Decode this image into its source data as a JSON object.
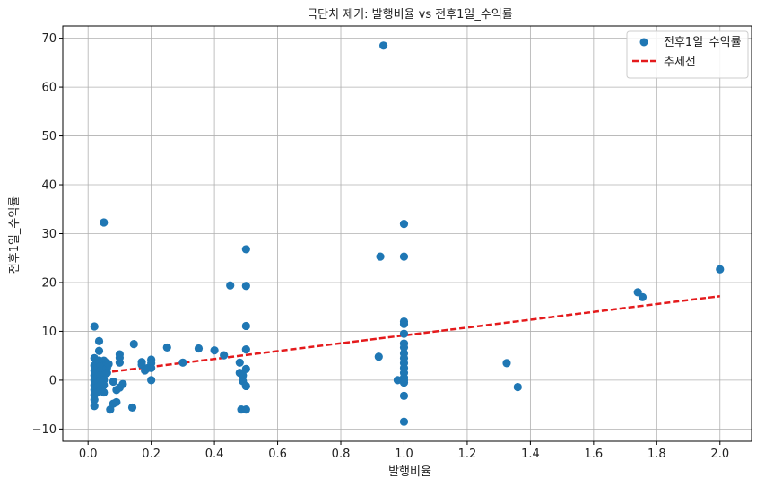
{
  "chart_data": {
    "type": "scatter",
    "title": "극단치 제거: 발행비율 vs 전후1일_수익률",
    "xlabel": "발행비율",
    "ylabel": "전후1일_수익률",
    "xlim": [
      -0.08,
      2.1
    ],
    "ylim": [
      -12.5,
      72.5
    ],
    "xticks": [
      0.0,
      0.2,
      0.4,
      0.6,
      0.8,
      1.0,
      1.2,
      1.4,
      1.6,
      1.8,
      2.0
    ],
    "xtick_labels": [
      "0.0",
      "0.2",
      "0.4",
      "0.6",
      "0.8",
      "1.0",
      "1.2",
      "1.4",
      "1.6",
      "1.8",
      "2.0"
    ],
    "yticks": [
      -10,
      0,
      10,
      20,
      30,
      40,
      50,
      60,
      70
    ],
    "ytick_labels": [
      "−10",
      "0",
      "10",
      "20",
      "30",
      "40",
      "50",
      "60",
      "70"
    ],
    "grid": true,
    "legend_position": "top-right",
    "series": [
      {
        "name": "전후1일_수익률",
        "kind": "scatter",
        "color": "#1f77b4",
        "points": [
          [
            0.02,
            11.0
          ],
          [
            0.02,
            4.5
          ],
          [
            0.02,
            3.0
          ],
          [
            0.02,
            2.0
          ],
          [
            0.02,
            1.0
          ],
          [
            0.02,
            0.0
          ],
          [
            0.02,
            -1.0
          ],
          [
            0.02,
            -2.0
          ],
          [
            0.02,
            -3.0
          ],
          [
            0.02,
            -4.0
          ],
          [
            0.02,
            -5.3
          ],
          [
            0.03,
            3.5
          ],
          [
            0.03,
            2.5
          ],
          [
            0.03,
            1.5
          ],
          [
            0.03,
            0.5
          ],
          [
            0.03,
            -0.5
          ],
          [
            0.03,
            -1.5
          ],
          [
            0.03,
            -2.5
          ],
          [
            0.035,
            8.0
          ],
          [
            0.035,
            6.0
          ],
          [
            0.035,
            4.0
          ],
          [
            0.04,
            3.0
          ],
          [
            0.04,
            2.0
          ],
          [
            0.04,
            1.0
          ],
          [
            0.04,
            0.0
          ],
          [
            0.04,
            -1.0
          ],
          [
            0.04,
            -2.0
          ],
          [
            0.05,
            32.3
          ],
          [
            0.05,
            4.0
          ],
          [
            0.05,
            3.0
          ],
          [
            0.05,
            2.0
          ],
          [
            0.05,
            1.0
          ],
          [
            0.05,
            0.0
          ],
          [
            0.05,
            -1.0
          ],
          [
            0.05,
            -2.5
          ],
          [
            0.06,
            3.5
          ],
          [
            0.06,
            2.5
          ],
          [
            0.06,
            1.5
          ],
          [
            0.065,
            3.3
          ],
          [
            0.07,
            -6.0
          ],
          [
            0.08,
            -0.3
          ],
          [
            0.08,
            -4.8
          ],
          [
            0.09,
            -4.5
          ],
          [
            0.09,
            -2.0
          ],
          [
            0.1,
            5.3
          ],
          [
            0.1,
            4.6
          ],
          [
            0.1,
            3.6
          ],
          [
            0.1,
            -1.5
          ],
          [
            0.11,
            -0.8
          ],
          [
            0.14,
            -5.6
          ],
          [
            0.145,
            7.4
          ],
          [
            0.17,
            3.7
          ],
          [
            0.17,
            3.2
          ],
          [
            0.18,
            2.0
          ],
          [
            0.19,
            2.5
          ],
          [
            0.2,
            4.2
          ],
          [
            0.2,
            3.5
          ],
          [
            0.2,
            2.5
          ],
          [
            0.2,
            0.0
          ],
          [
            0.25,
            6.7
          ],
          [
            0.3,
            3.6
          ],
          [
            0.35,
            6.5
          ],
          [
            0.4,
            6.1
          ],
          [
            0.43,
            5.1
          ],
          [
            0.45,
            19.4
          ],
          [
            0.48,
            3.6
          ],
          [
            0.48,
            1.5
          ],
          [
            0.485,
            -6.0
          ],
          [
            0.49,
            -0.2
          ],
          [
            0.49,
            1.0
          ],
          [
            0.5,
            26.8
          ],
          [
            0.5,
            19.3
          ],
          [
            0.5,
            11.1
          ],
          [
            0.5,
            6.3
          ],
          [
            0.5,
            2.3
          ],
          [
            0.5,
            -1.2
          ],
          [
            0.5,
            -6.0
          ],
          [
            0.92,
            4.8
          ],
          [
            0.925,
            25.3
          ],
          [
            0.935,
            68.5
          ],
          [
            0.98,
            0.0
          ],
          [
            1.0,
            32.0
          ],
          [
            1.0,
            25.3
          ],
          [
            1.0,
            12.0
          ],
          [
            1.0,
            11.5
          ],
          [
            1.0,
            9.5
          ],
          [
            1.0,
            7.5
          ],
          [
            1.0,
            6.7
          ],
          [
            1.0,
            5.5
          ],
          [
            1.0,
            4.5
          ],
          [
            1.0,
            3.5
          ],
          [
            1.0,
            2.5
          ],
          [
            1.0,
            1.5
          ],
          [
            1.0,
            0.5
          ],
          [
            1.0,
            0.0
          ],
          [
            1.0,
            -0.5
          ],
          [
            1.0,
            -3.2
          ],
          [
            1.0,
            -8.5
          ],
          [
            1.325,
            3.5
          ],
          [
            1.36,
            -1.4
          ],
          [
            1.74,
            18.0
          ],
          [
            1.755,
            17.0
          ],
          [
            2.0,
            22.7
          ]
        ]
      },
      {
        "name": "추세선",
        "kind": "line",
        "color": "#e41a1c",
        "dashed": true,
        "x": [
          0.02,
          2.0
        ],
        "y": [
          1.3,
          17.2
        ]
      }
    ]
  }
}
